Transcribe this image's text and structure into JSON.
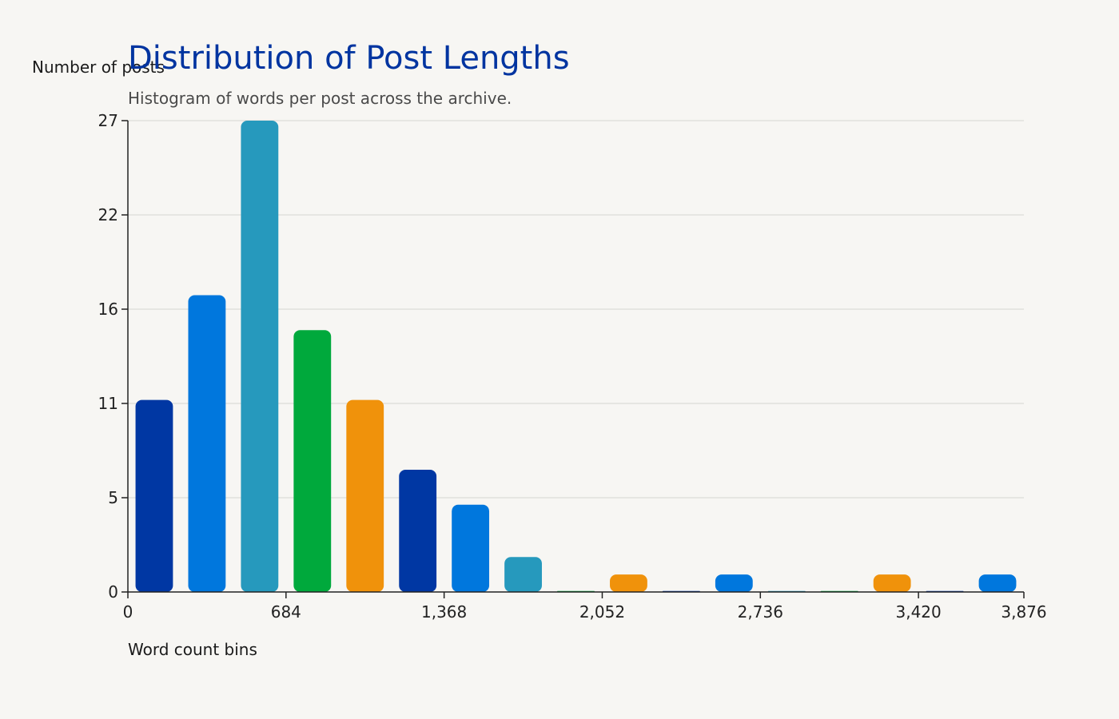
{
  "chart_data": {
    "type": "bar",
    "title": "Distribution of Post Lengths",
    "subtitle": "Histogram of words per post across the archive.",
    "xlabel": "Word count bins",
    "ylabel": "Number of posts",
    "xlim": [
      0,
      3876
    ],
    "ylim": [
      0,
      27
    ],
    "x_ticks": [
      "0",
      "684",
      "1,368",
      "2,052",
      "2,736",
      "3,420",
      "3,876"
    ],
    "x_tick_values": [
      0,
      684,
      1368,
      2052,
      2736,
      3420,
      3876
    ],
    "y_ticks": [
      "0",
      "5",
      "11",
      "16",
      "22",
      "27"
    ],
    "y_tick_values": [
      0,
      5.4,
      10.8,
      16.2,
      21.6,
      27
    ],
    "bin_width": 228,
    "values": [
      11,
      17,
      27,
      15,
      11,
      7,
      5,
      2,
      0,
      1,
      0,
      1,
      0,
      0,
      1,
      0,
      1
    ],
    "palette": [
      "#0037a3",
      "#0077dd",
      "#2699bd",
      "#00a93c",
      "#f0920b"
    ],
    "grid": true,
    "legend": "none"
  }
}
